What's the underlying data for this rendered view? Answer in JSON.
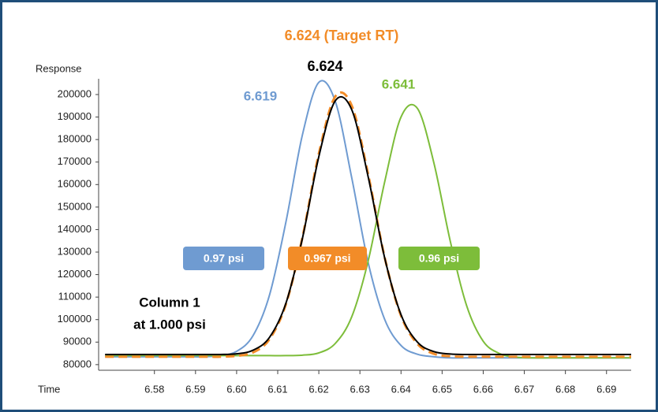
{
  "chart_data": {
    "type": "line",
    "x_label": "Time",
    "y_label": "Response",
    "x": [
      6.568,
      6.572,
      6.576,
      6.58,
      6.584,
      6.588,
      6.592,
      6.596,
      6.6,
      6.604,
      6.608,
      6.612,
      6.616,
      6.62,
      6.624,
      6.628,
      6.632,
      6.636,
      6.64,
      6.644,
      6.648,
      6.652,
      6.656,
      6.66,
      6.664,
      6.668,
      6.672,
      6.676,
      6.68,
      6.684,
      6.688,
      6.692,
      6.696
    ],
    "series": [
      {
        "name": "0.97 psi",
        "peak_label": "6.619",
        "color": "#6f9bd1",
        "dashed": false,
        "values": [
          83500,
          83500,
          83500,
          83500,
          83500,
          83500,
          83500,
          84000,
          85900,
          92900,
          110900,
          143400,
          182000,
          205400,
          197000,
          163100,
          125400,
          100200,
          88500,
          84600,
          83500,
          83000,
          83000,
          83000,
          83000,
          83000,
          83000,
          83000,
          83000,
          83000,
          83000,
          83000,
          83000
        ]
      },
      {
        "name": "0.96 psi",
        "peak_label": "6.641",
        "color": "#7dbd3a",
        "dashed": false,
        "values": [
          84000,
          84000,
          84000,
          84000,
          84000,
          84000,
          84000,
          84000,
          84000,
          84000,
          84000,
          84000,
          84200,
          85200,
          89400,
          101200,
          126000,
          161000,
          190000,
          193800,
          169600,
          134700,
          106000,
          90400,
          84900,
          83300,
          83000,
          83000,
          83000,
          83000,
          83000,
          83000,
          83000
        ]
      },
      {
        "name": "0.967 psi",
        "peak_label": "6.624 (Target RT)",
        "color": "#f28c28",
        "dashed": true,
        "values": [
          83500,
          83500,
          83500,
          83500,
          83500,
          83500,
          83500,
          83500,
          83900,
          85400,
          91300,
          106900,
          136400,
          173700,
          199100,
          195100,
          164600,
          127800,
          101700,
          89200,
          84800,
          83700,
          83500,
          83500,
          83500,
          83500,
          83500,
          83500,
          83500,
          83500,
          83500,
          83500,
          83500
        ]
      },
      {
        "peak_label": "6.624",
        "color": "#000000",
        "dashed": false,
        "values": [
          84500,
          84500,
          84500,
          84500,
          84500,
          84500,
          84500,
          84500,
          84800,
          86400,
          92100,
          107300,
          136000,
          172400,
          197200,
          193300,
          163500,
          127600,
          102200,
          90000,
          85800,
          84700,
          84500,
          84500,
          84500,
          84500,
          84500,
          84500,
          84500,
          84500,
          84500,
          84500,
          84500
        ]
      }
    ],
    "annotation": [
      "Column 1",
      "at 1.000 psi"
    ],
    "xlim": [
      6.567,
      6.696
    ],
    "xticks": [
      6.58,
      6.59,
      {
        "value": 6.6,
        "label": "6.60"
      },
      6.61,
      6.62,
      6.63,
      6.64,
      6.65,
      6.66,
      6.67,
      6.68,
      6.69
    ],
    "ylim": [
      77500,
      207000
    ],
    "yticks": [
      80000,
      90000,
      100000,
      110000,
      120000,
      130000,
      140000,
      150000,
      160000,
      170000,
      180000,
      190000,
      200000
    ],
    "grid": false
  }
}
